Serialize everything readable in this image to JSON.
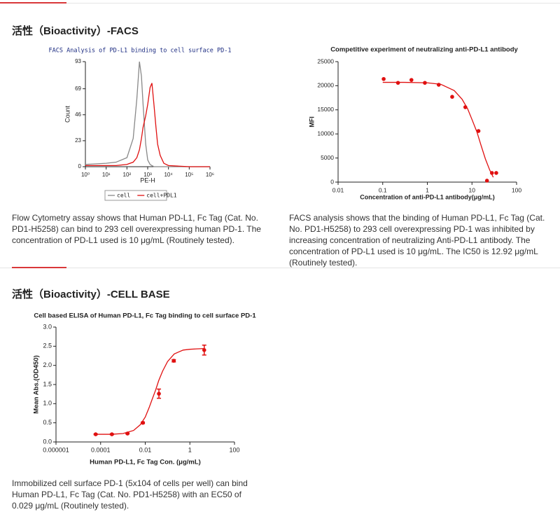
{
  "sections": [
    {
      "title": "活性（Bioactivity）-FACS",
      "figures": [
        {
          "chart_data": {
            "type": "line",
            "title": "FACS Analysis of PD-L1 binding to cell surface PD-1",
            "x_label": "PE-H",
            "y_label": "Count",
            "xscale": "log",
            "x": [
              1,
              10,
              30,
              100,
              200,
              300,
              400,
              500,
              600,
              800,
              1000,
              1300,
              1600,
              2000,
              2500,
              3000,
              4000,
              6000,
              10000,
              100000,
              1000000
            ],
            "series": [
              {
                "name": "cell",
                "color": "#888888",
                "values": [
                  2,
                  3,
                  4,
                  8,
                  25,
                  60,
                  93,
                  80,
                  55,
                  20,
                  6,
                  2,
                  1,
                  0,
                  0,
                  0,
                  0,
                  0,
                  0,
                  0,
                  0
                ]
              },
              {
                "name": "cell+PDL1",
                "color": "#e01010",
                "values": [
                  1,
                  1,
                  1,
                  2,
                  4,
                  8,
                  15,
                  25,
                  35,
                  45,
                  55,
                  70,
                  74,
                  55,
                  35,
                  20,
                  10,
                  3,
                  1,
                  0,
                  0
                ]
              }
            ],
            "xlim": [
              1,
              1000000
            ],
            "xticks": [
              {
                "value": 1,
                "label": "10⁰"
              },
              {
                "value": 10,
                "label": "10¹"
              },
              {
                "value": 100,
                "label": "10²"
              },
              {
                "value": 1000,
                "label": "10³"
              },
              {
                "value": 10000,
                "label": "10⁴"
              },
              {
                "value": 100000,
                "label": "10⁵"
              },
              {
                "value": 1000000,
                "label": "10⁶"
              }
            ],
            "ylim": [
              0,
              93
            ],
            "yticks": [
              0,
              23,
              46,
              69,
              93
            ],
            "legend": "bottom"
          },
          "caption": "Flow Cytometry assay shows that Human PD-L1, Fc Tag (Cat. No. PD1-H5258) can bind to 293 cell overexpressing human PD-1. The concentration of PD-L1 used is 10 μg/mL (Routinely tested)."
        },
        {
          "chart_data": {
            "type": "scatter",
            "title": "Competitive experiment of neutralizing anti-PD-L1 antibody",
            "x_label": "Concentration of anti-PD-L1 antibody(μg/mL)",
            "y_label": "MFI",
            "xscale": "log",
            "series": [
              {
                "kind": "scatter",
                "color": "#e01010",
                "x": [
                  0.105,
                  0.22,
                  0.44,
                  0.88,
                  1.8,
                  3.6,
                  7.1,
                  14,
                  21.7,
                  28,
                  35
                ],
                "values": [
                  21400,
                  20600,
                  21200,
                  20600,
                  20200,
                  17700,
                  15550,
                  10600,
                  300,
                  1900,
                  1900
                ]
              },
              {
                "kind": "line",
                "color": "#e01010",
                "x": [
                  0.1,
                  0.3,
                  1,
                  2,
                  4,
                  6,
                  8,
                  10,
                  12.92,
                  16,
                  20,
                  25,
                  30
                ],
                "values": [
                  20700,
                  20700,
                  20600,
                  20300,
                  19000,
                  17200,
                  15200,
                  13000,
                  10400,
                  7600,
                  4800,
                  2500,
                  1000
                ]
              }
            ],
            "xlim": [
              0.01,
              100
            ],
            "xticks": [
              0.01,
              0.1,
              1,
              10,
              100
            ],
            "ylim": [
              0,
              25000
            ],
            "yticks": [
              0,
              5000,
              10000,
              15000,
              20000,
              25000
            ]
          },
          "caption": "FACS analysis shows that the binding of Human PD-L1, Fc Tag (Cat. No. PD1-H5258) to 293 cell overexpressing PD-1 was inhibited by increasing concentration of neutralizing Anti-PD-L1 antibody. The concentration of PD-L1 used is 10 μg/mL. The IC50 is 12.92 μg/mL (Routinely tested)."
        }
      ]
    },
    {
      "title": "活性（Bioactivity）-CELL BASE",
      "figures": [
        {
          "chart_data": {
            "type": "scatter",
            "title": "Cell based ELISA of Human PD-L1, Fc Tag binding to cell surface PD-1",
            "x_label": "Human PD-L1, Fc Tag Con. (μg/mL)",
            "y_label": "Mean Abs.(OD450)",
            "xscale": "log",
            "series": [
              {
                "kind": "scatter",
                "color": "#e01010",
                "x": [
                  6e-05,
                  0.00032,
                  0.0016,
                  0.0078,
                  0.041,
                  0.19,
                  4.4
                ],
                "values": [
                  0.2,
                  0.2,
                  0.22,
                  0.5,
                  1.26,
                  2.12,
                  2.4
                ],
                "errors": [
                  0.01,
                  0.01,
                  0.01,
                  0.02,
                  0.12,
                  0.03,
                  0.13
                ]
              },
              {
                "kind": "line",
                "color": "#e01010",
                "x": [
                  6e-05,
                  0.0003,
                  0.001,
                  0.003,
                  0.006,
                  0.01,
                  0.015,
                  0.02,
                  0.029,
                  0.04,
                  0.06,
                  0.1,
                  0.2,
                  0.5,
                  1,
                  2,
                  4.4
                ],
                "values": [
                  0.2,
                  0.2,
                  0.22,
                  0.3,
                  0.45,
                  0.65,
                  0.9,
                  1.1,
                  1.35,
                  1.6,
                  1.85,
                  2.1,
                  2.3,
                  2.4,
                  2.42,
                  2.43,
                  2.44
                ]
              }
            ],
            "xlim": [
              1e-06,
              100
            ],
            "xticks": [
              1e-06,
              0.0001,
              0.01,
              1,
              100
            ],
            "ylim": [
              0,
              3
            ],
            "yticks": [
              {
                "value": 0,
                "label": "0.0"
              },
              0.5,
              {
                "value": 1,
                "label": "1.0"
              },
              1.5,
              {
                "value": 2,
                "label": "2.0"
              },
              2.5,
              {
                "value": 3,
                "label": "3.0"
              }
            ]
          },
          "caption": "Immobilized cell surface PD-1 (5x104 of cells per well) can bind Human PD-L1, Fc Tag (Cat. No. PD1-H5258) with an EC50 of 0.029 μg/mL (Routinely tested)."
        }
      ]
    }
  ]
}
